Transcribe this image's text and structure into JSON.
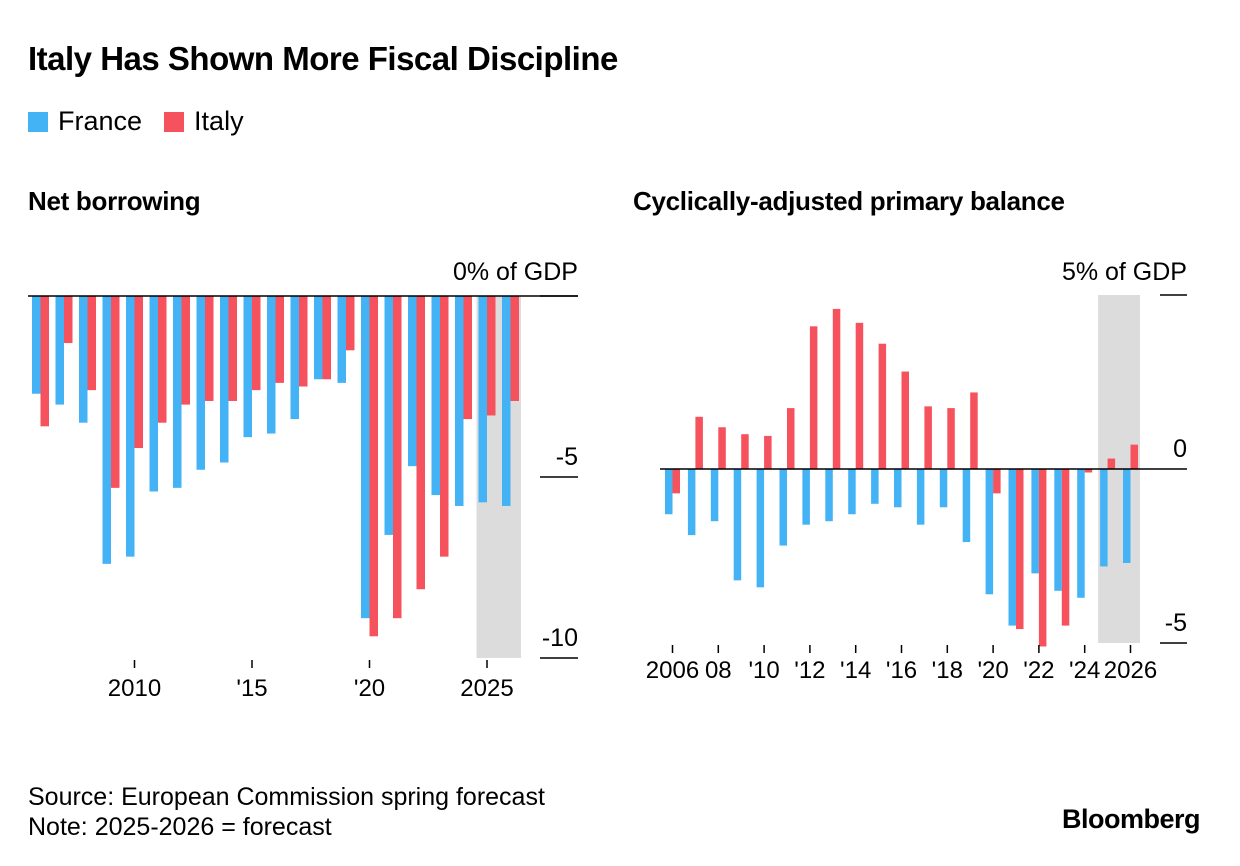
{
  "title": "Italy Has Shown More Fiscal Discipline",
  "colors": {
    "france": "#44b3f5",
    "italy": "#f5525d",
    "forecast_band": "#dcdcdc",
    "axis": "#000000"
  },
  "legend": [
    {
      "name": "France",
      "color": "#44b3f5"
    },
    {
      "name": "Italy",
      "color": "#f5525d"
    }
  ],
  "chart_data": [
    {
      "type": "bar",
      "title": "Net borrowing",
      "unit_label": "0% of GDP",
      "years": [
        2006,
        2007,
        2008,
        2009,
        2010,
        2011,
        2012,
        2013,
        2014,
        2015,
        2016,
        2017,
        2018,
        2019,
        2020,
        2021,
        2022,
        2023,
        2024,
        2025,
        2026
      ],
      "series": [
        {
          "name": "France",
          "values": [
            -2.7,
            -3.0,
            -3.5,
            -7.4,
            -7.2,
            -5.4,
            -5.3,
            -4.8,
            -4.6,
            -3.9,
            -3.8,
            -3.4,
            -2.3,
            -2.4,
            -8.9,
            -6.6,
            -4.7,
            -5.5,
            -5.8,
            -5.7,
            -5.8
          ]
        },
        {
          "name": "Italy",
          "values": [
            -3.6,
            -1.3,
            -2.6,
            -5.3,
            -4.2,
            -3.5,
            -3.0,
            -2.9,
            -2.9,
            -2.6,
            -2.4,
            -2.5,
            -2.3,
            -1.5,
            -9.4,
            -8.9,
            -8.1,
            -7.2,
            -3.4,
            -3.3,
            -2.9
          ]
        }
      ],
      "y_ticks": [
        {
          "value": 0,
          "label": ""
        },
        {
          "value": -5,
          "label": "-5"
        },
        {
          "value": -10,
          "label": "-10"
        }
      ],
      "x_ticks": [
        {
          "year": 2010,
          "label": "2010"
        },
        {
          "year": 2015,
          "label": "'15"
        },
        {
          "year": 2020,
          "label": "'20"
        },
        {
          "year": 2025,
          "label": "2025"
        }
      ],
      "ylim": [
        -10,
        0
      ],
      "forecast": [
        2025,
        2026
      ]
    },
    {
      "type": "bar",
      "title": "Cyclically-adjusted primary balance",
      "unit_label": "5% of GDP",
      "years": [
        2006,
        2007,
        2008,
        2009,
        2010,
        2011,
        2012,
        2013,
        2014,
        2015,
        2016,
        2017,
        2018,
        2019,
        2020,
        2021,
        2022,
        2023,
        2024,
        2025,
        2026
      ],
      "series": [
        {
          "name": "France",
          "values": [
            -1.3,
            -1.9,
            -1.5,
            -3.2,
            -3.4,
            -2.2,
            -1.6,
            -1.5,
            -1.3,
            -1.0,
            -1.1,
            -1.6,
            -1.1,
            -2.1,
            -3.6,
            -4.5,
            -3.0,
            -3.5,
            -3.7,
            -2.8,
            -2.7
          ]
        },
        {
          "name": "Italy",
          "values": [
            -0.7,
            1.5,
            1.2,
            1.0,
            0.95,
            1.75,
            4.1,
            4.6,
            4.2,
            3.6,
            2.8,
            1.8,
            1.75,
            2.2,
            -0.7,
            -4.6,
            -5.1,
            -4.5,
            -0.1,
            0.3,
            0.7
          ]
        }
      ],
      "y_ticks": [
        {
          "value": 5,
          "label": ""
        },
        {
          "value": 0,
          "label": "0"
        },
        {
          "value": -5,
          "label": "-5"
        }
      ],
      "x_ticks": [
        {
          "year": 2006,
          "label": "2006"
        },
        {
          "year": 2008,
          "label": "08"
        },
        {
          "year": 2010,
          "label": "'10"
        },
        {
          "year": 2012,
          "label": "'12"
        },
        {
          "year": 2014,
          "label": "'14"
        },
        {
          "year": 2016,
          "label": "'16"
        },
        {
          "year": 2018,
          "label": "'18"
        },
        {
          "year": 2020,
          "label": "'20"
        },
        {
          "year": 2022,
          "label": "'22"
        },
        {
          "year": 2024,
          "label": "'24"
        },
        {
          "year": 2026,
          "label": "2026"
        }
      ],
      "ylim": [
        -5,
        5
      ],
      "forecast": [
        2025,
        2026
      ]
    }
  ],
  "footer": {
    "source": "Source: European Commission spring forecast",
    "note": "Note: 2025-2026 = forecast"
  },
  "brand": "Bloomberg"
}
